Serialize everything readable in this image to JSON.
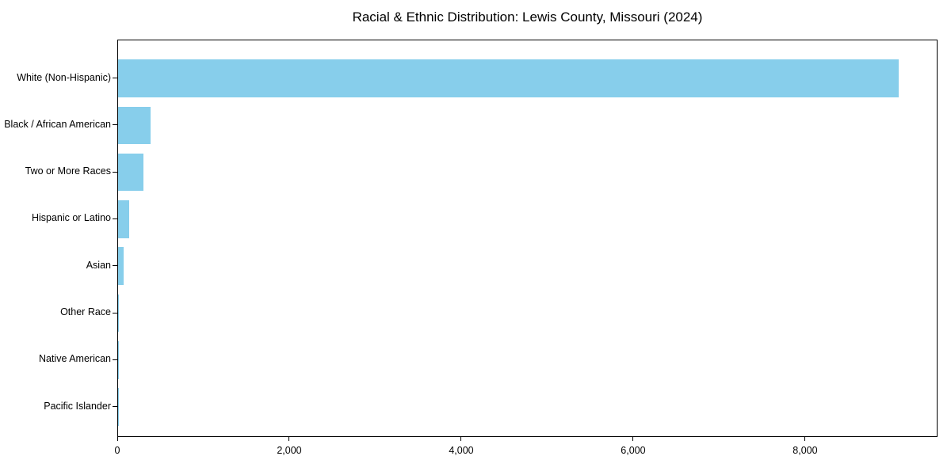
{
  "chart_data": {
    "type": "bar",
    "orientation": "horizontal",
    "title": "Racial & Ethnic Distribution: Lewis County, Missouri (2024)",
    "categories": [
      "White (Non-Hispanic)",
      "Black / African American",
      "Two or More Races",
      "Hispanic or Latino",
      "Asian",
      "Other Race",
      "Native American",
      "Pacific Islander"
    ],
    "values": [
      9080,
      380,
      295,
      125,
      65,
      8,
      5,
      2
    ],
    "xlabel": "",
    "ylabel": "",
    "xlim": [
      0,
      9540
    ],
    "xticks": [
      0,
      2000,
      4000,
      6000,
      8000
    ],
    "xtick_labels": [
      "0",
      "2,000",
      "4,000",
      "6,000",
      "8,000"
    ],
    "bar_color": "#87CEEB",
    "frame_color": "#000000",
    "background_color": "#ffffff",
    "grid": false,
    "legend": "none",
    "sort": "descending"
  }
}
